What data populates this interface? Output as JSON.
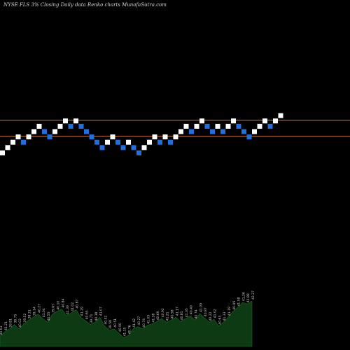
{
  "header": {
    "symbol": "NYSE FLS",
    "change": "3%",
    "caption": "Closing Daily data Renko charts MunafaSutra.com"
  },
  "colors": {
    "background": "#000000",
    "up_brick": "#ffffff",
    "down_brick": "#1e6fe0",
    "reference_line": "#c8741f",
    "volume_fill": "#0d3a12",
    "volume_label": "#d0d0d0"
  },
  "chart_data": {
    "type": "renko",
    "brick_size_units": 1,
    "reference_lines": [
      {
        "name": "upper",
        "level": 41.5
      },
      {
        "name": "lower",
        "level": 39.1
      }
    ],
    "brick_levels": [
      {
        "level": 36.6,
        "direction": "up"
      },
      {
        "level": 37.4,
        "direction": "up"
      },
      {
        "level": 38.2,
        "direction": "up"
      },
      {
        "level": 39.0,
        "direction": "up"
      },
      {
        "level": 38.2,
        "direction": "down"
      },
      {
        "level": 39.0,
        "direction": "up"
      },
      {
        "level": 39.8,
        "direction": "up"
      },
      {
        "level": 40.6,
        "direction": "up"
      },
      {
        "level": 39.8,
        "direction": "down"
      },
      {
        "level": 39.0,
        "direction": "down"
      },
      {
        "level": 39.8,
        "direction": "up"
      },
      {
        "level": 40.6,
        "direction": "up"
      },
      {
        "level": 41.4,
        "direction": "up"
      },
      {
        "level": 40.6,
        "direction": "down"
      },
      {
        "level": 41.4,
        "direction": "up"
      },
      {
        "level": 40.6,
        "direction": "down"
      },
      {
        "level": 39.8,
        "direction": "down"
      },
      {
        "level": 39.0,
        "direction": "down"
      },
      {
        "level": 38.2,
        "direction": "down"
      },
      {
        "level": 37.4,
        "direction": "down"
      },
      {
        "level": 38.2,
        "direction": "up"
      },
      {
        "level": 39.0,
        "direction": "up"
      },
      {
        "level": 38.2,
        "direction": "down"
      },
      {
        "level": 37.4,
        "direction": "down"
      },
      {
        "level": 38.2,
        "direction": "up"
      },
      {
        "level": 37.4,
        "direction": "down"
      },
      {
        "level": 36.6,
        "direction": "down"
      },
      {
        "level": 37.4,
        "direction": "up"
      },
      {
        "level": 38.2,
        "direction": "up"
      },
      {
        "level": 39.0,
        "direction": "up"
      },
      {
        "level": 38.2,
        "direction": "down"
      },
      {
        "level": 39.0,
        "direction": "up"
      },
      {
        "level": 38.2,
        "direction": "down"
      },
      {
        "level": 39.0,
        "direction": "up"
      },
      {
        "level": 39.8,
        "direction": "up"
      },
      {
        "level": 40.6,
        "direction": "up"
      },
      {
        "level": 39.8,
        "direction": "down"
      },
      {
        "level": 40.6,
        "direction": "up"
      },
      {
        "level": 41.4,
        "direction": "up"
      },
      {
        "level": 40.6,
        "direction": "down"
      },
      {
        "level": 39.8,
        "direction": "down"
      },
      {
        "level": 40.6,
        "direction": "up"
      },
      {
        "level": 39.8,
        "direction": "down"
      },
      {
        "level": 40.6,
        "direction": "up"
      },
      {
        "level": 41.4,
        "direction": "up"
      },
      {
        "level": 40.6,
        "direction": "down"
      },
      {
        "level": 39.8,
        "direction": "down"
      },
      {
        "level": 39.0,
        "direction": "down"
      },
      {
        "level": 39.8,
        "direction": "up"
      },
      {
        "level": 40.6,
        "direction": "up"
      },
      {
        "level": 41.4,
        "direction": "up"
      },
      {
        "level": 40.6,
        "direction": "down"
      },
      {
        "level": 41.4,
        "direction": "up"
      },
      {
        "level": 42.2,
        "direction": "up"
      }
    ],
    "volume": [
      14,
      20,
      24,
      30,
      24,
      31,
      36,
      40,
      44,
      38,
      33,
      44,
      48,
      51,
      42,
      46,
      50,
      40,
      35,
      30,
      33,
      40,
      28,
      22,
      24,
      18,
      12,
      15,
      24,
      27,
      24,
      29,
      31,
      34,
      38,
      33,
      36,
      40,
      34,
      38,
      42,
      36,
      45,
      39,
      33,
      37,
      28,
      33,
      40,
      48,
      53,
      60,
      58,
      62
    ],
    "volume_labels": [
      "40.63",
      "41.21",
      "39.81",
      "38.75",
      "40.02",
      "39.52",
      "38.31",
      "39.14",
      "40.27",
      "41.04",
      "40.55",
      "39.67",
      "40.10",
      "40.84",
      "41.33",
      "41.02",
      "40.87",
      "41.29",
      "40.63",
      "39.71",
      "40.18",
      "41.07",
      "40.32",
      "39.58",
      "40.51",
      "40.90",
      "41.15",
      "40.76",
      "41.42",
      "40.27",
      "40.74",
      "41.05",
      "41.38",
      "40.69",
      "40.92",
      "41.21",
      "40.58",
      "41.17",
      "40.81",
      "41.35",
      "40.40",
      "40.74",
      "41.09",
      "40.87",
      "40.22",
      "41.02",
      "40.63",
      "41.33",
      "41.19",
      "40.95",
      "41.58",
      "41.26",
      "41.88",
      "42.27"
    ]
  }
}
